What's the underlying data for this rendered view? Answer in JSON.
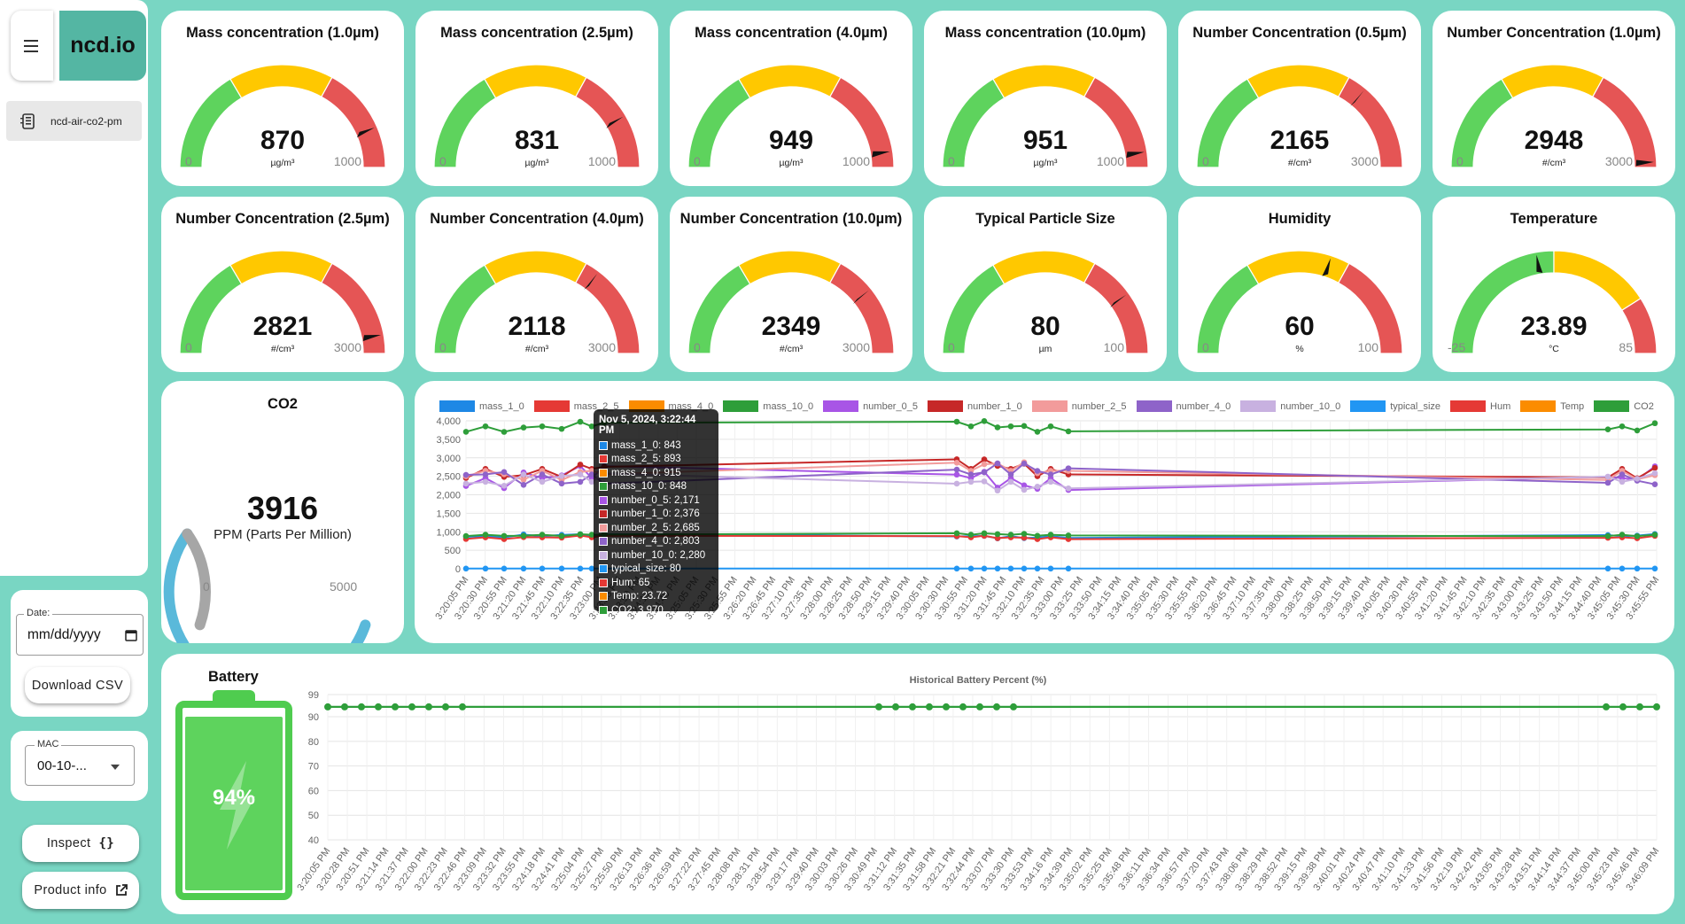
{
  "brand": {
    "name": "ncd.io"
  },
  "sidebar": {
    "menu_icon": "hamburger-icon",
    "device": {
      "label": "ncd-air-co2-pm",
      "icon": "device-icon"
    }
  },
  "date_filter": {
    "label": "Date:",
    "placeholder": "mm/dd/yyyy",
    "icon": "calendar-icon"
  },
  "download_button": {
    "label": "Download CSV"
  },
  "mac_select": {
    "label": "MAC",
    "value": "00-10-...",
    "icon": "dropdown-arrow-icon"
  },
  "inspect_button": {
    "label": "Inspect",
    "icon": "braces-icon"
  },
  "product_info_button": {
    "label": "Product info",
    "icon": "external-link-icon"
  },
  "colors": {
    "green": "#5ed35d",
    "yellow": "#ffc800",
    "red": "#e55555",
    "co2_blue": "#5ab9da",
    "co2_grey": "#a6a6a6",
    "battery_green": "#4fcc4f"
  },
  "gauges": [
    {
      "title": "Mass concentration (1.0µm)",
      "value": "870",
      "unit": "µg/m³",
      "min": "0",
      "max": "1000",
      "value_num": 870,
      "min_num": 0,
      "max_num": 1000,
      "segments": [
        [
          0,
          0.33,
          "green"
        ],
        [
          0.33,
          0.66,
          "yellow"
        ],
        [
          0.66,
          1,
          "red"
        ]
      ]
    },
    {
      "title": "Mass concentration (2.5µm)",
      "value": "831",
      "unit": "µg/m³",
      "min": "0",
      "max": "1000",
      "value_num": 831,
      "min_num": 0,
      "max_num": 1000,
      "segments": [
        [
          0,
          0.33,
          "green"
        ],
        [
          0.33,
          0.66,
          "yellow"
        ],
        [
          0.66,
          1,
          "red"
        ]
      ]
    },
    {
      "title": "Mass concentration (4.0µm)",
      "value": "949",
      "unit": "µg/m³",
      "min": "0",
      "max": "1000",
      "value_num": 949,
      "min_num": 0,
      "max_num": 1000,
      "segments": [
        [
          0,
          0.33,
          "green"
        ],
        [
          0.33,
          0.66,
          "yellow"
        ],
        [
          0.66,
          1,
          "red"
        ]
      ]
    },
    {
      "title": "Mass concentration (10.0µm)",
      "value": "951",
      "unit": "µg/m³",
      "min": "0",
      "max": "1000",
      "value_num": 951,
      "min_num": 0,
      "max_num": 1000,
      "segments": [
        [
          0,
          0.33,
          "green"
        ],
        [
          0.33,
          0.66,
          "yellow"
        ],
        [
          0.66,
          1,
          "red"
        ]
      ]
    },
    {
      "title": "Number Concentration (0.5µm)",
      "value": "2165",
      "unit": "#/cm³",
      "min": "0",
      "max": "3000",
      "value_num": 2165,
      "min_num": 0,
      "max_num": 3000,
      "segments": [
        [
          0,
          0.33,
          "green"
        ],
        [
          0.33,
          0.66,
          "yellow"
        ],
        [
          0.66,
          1,
          "red"
        ]
      ]
    },
    {
      "title": "Number Concentration (1.0µm)",
      "value": "2948",
      "unit": "#/cm³",
      "min": "0",
      "max": "3000",
      "value_num": 2948,
      "min_num": 0,
      "max_num": 3000,
      "segments": [
        [
          0,
          0.33,
          "green"
        ],
        [
          0.33,
          0.66,
          "yellow"
        ],
        [
          0.66,
          1,
          "red"
        ]
      ]
    },
    {
      "title": "Number Concentration (2.5µm)",
      "value": "2821",
      "unit": "#/cm³",
      "min": "0",
      "max": "3000",
      "value_num": 2821,
      "min_num": 0,
      "max_num": 3000,
      "segments": [
        [
          0,
          0.33,
          "green"
        ],
        [
          0.33,
          0.66,
          "yellow"
        ],
        [
          0.66,
          1,
          "red"
        ]
      ]
    },
    {
      "title": "Number Concentration (4.0µm)",
      "value": "2118",
      "unit": "#/cm³",
      "min": "0",
      "max": "3000",
      "value_num": 2118,
      "min_num": 0,
      "max_num": 3000,
      "segments": [
        [
          0,
          0.33,
          "green"
        ],
        [
          0.33,
          0.66,
          "yellow"
        ],
        [
          0.66,
          1,
          "red"
        ]
      ]
    },
    {
      "title": "Number Concentration (10.0µm)",
      "value": "2349",
      "unit": "#/cm³",
      "min": "0",
      "max": "3000",
      "value_num": 2349,
      "min_num": 0,
      "max_num": 3000,
      "segments": [
        [
          0,
          0.33,
          "green"
        ],
        [
          0.33,
          0.66,
          "yellow"
        ],
        [
          0.66,
          1,
          "red"
        ]
      ]
    },
    {
      "title": "Typical Particle Size",
      "value": "80",
      "unit": "µm",
      "min": "0",
      "max": "100",
      "value_num": 80,
      "min_num": 0,
      "max_num": 100,
      "segments": [
        [
          0,
          0.33,
          "green"
        ],
        [
          0.33,
          0.66,
          "yellow"
        ],
        [
          0.66,
          1,
          "red"
        ]
      ]
    },
    {
      "title": "Humidity",
      "value": "60",
      "unit": "%",
      "min": "0",
      "max": "100",
      "value_num": 60,
      "min_num": 0,
      "max_num": 100,
      "segments": [
        [
          0,
          0.33,
          "green"
        ],
        [
          0.33,
          0.66,
          "yellow"
        ],
        [
          0.66,
          1,
          "red"
        ]
      ]
    },
    {
      "title": "Temperature",
      "value": "23.89",
      "unit": "°C",
      "min": "-25",
      "max": "85",
      "value_num": 23.89,
      "min_num": -25,
      "max_num": 85,
      "segments": [
        [
          0,
          0.5,
          "green"
        ],
        [
          0.5,
          0.82,
          "yellow"
        ],
        [
          0.82,
          1,
          "red"
        ]
      ]
    }
  ],
  "co2": {
    "title": "CO2",
    "value": "3916",
    "unit": "PPM (Parts Per Million)",
    "min": "0",
    "max": "5000",
    "value_num": 3916,
    "min_num": 0,
    "max_num": 5000
  },
  "battery": {
    "title": "Battery",
    "percent_label": "94%",
    "percent": 94,
    "icon": "lightning-bolt-icon"
  },
  "chart_data": [
    {
      "type": "line",
      "title": "",
      "legend_position": "top",
      "series": [
        {
          "name": "mass_1_0",
          "color": "#1e88e5"
        },
        {
          "name": "mass_2_5",
          "color": "#e53935"
        },
        {
          "name": "mass_4_0",
          "color": "#fb8c00"
        },
        {
          "name": "mass_10_0",
          "color": "#2e9e3a"
        },
        {
          "name": "number_0_5",
          "color": "#a855e6"
        },
        {
          "name": "number_1_0",
          "color": "#c62828"
        },
        {
          "name": "number_2_5",
          "color": "#f29b9b"
        },
        {
          "name": "number_4_0",
          "color": "#8e63c9"
        },
        {
          "name": "number_10_0",
          "color": "#c8b1e0"
        },
        {
          "name": "typical_size",
          "color": "#2196f3"
        },
        {
          "name": "Hum",
          "color": "#e53935"
        },
        {
          "name": "Temp",
          "color": "#fb8c00"
        },
        {
          "name": "CO2",
          "color": "#2e9e3a"
        }
      ],
      "yticks": [
        "4,000",
        "3,500",
        "3,000",
        "2,500",
        "2,000",
        "1,500",
        "1,000",
        "500",
        "0"
      ],
      "ylim": [
        0,
        4000
      ],
      "xticks": [
        "3:20:05 PM",
        "3:20:30 PM",
        "3:20:55 PM",
        "3:21:20 PM",
        "3:21:45 PM",
        "3:22:10 PM",
        "3:22:35 PM",
        "3:23:00 PM",
        "3:23:25 PM",
        "3:23:50 PM",
        "3:24:15 PM",
        "3:24:40 PM",
        "3:25:05 PM",
        "3:25:30 PM",
        "3:25:55 PM",
        "3:26:20 PM",
        "3:26:45 PM",
        "3:27:10 PM",
        "3:27:35 PM",
        "3:28:00 PM",
        "3:28:25 PM",
        "3:28:50 PM",
        "3:29:15 PM",
        "3:29:40 PM",
        "3:30:05 PM",
        "3:30:30 PM",
        "3:30:55 PM",
        "3:31:20 PM",
        "3:31:45 PM",
        "3:32:10 PM",
        "3:32:35 PM",
        "3:33:00 PM",
        "3:33:25 PM",
        "3:33:50 PM",
        "3:34:15 PM",
        "3:34:40 PM",
        "3:35:05 PM",
        "3:35:30 PM",
        "3:35:55 PM",
        "3:36:20 PM",
        "3:36:45 PM",
        "3:37:10 PM",
        "3:37:35 PM",
        "3:38:00 PM",
        "3:38:25 PM",
        "3:38:50 PM",
        "3:39:15 PM",
        "3:39:40 PM",
        "3:40:05 PM",
        "3:40:30 PM",
        "3:40:55 PM",
        "3:41:20 PM",
        "3:41:45 PM",
        "3:42:10 PM",
        "3:42:35 PM",
        "3:43:00 PM",
        "3:43:25 PM",
        "3:43:50 PM",
        "3:44:15 PM",
        "3:44:40 PM",
        "3:45:05 PM",
        "3:45:30 PM",
        "3:45:55 PM"
      ],
      "tooltip": {
        "title": "Nov 5, 2024, 3:22:44 PM",
        "rows": [
          {
            "text": "mass_1_0: 843",
            "color": "#1e88e5"
          },
          {
            "text": "mass_2_5: 893",
            "color": "#e53935"
          },
          {
            "text": "mass_4_0: 915",
            "color": "#fb8c00"
          },
          {
            "text": "mass_10_0: 848",
            "color": "#2e9e3a"
          },
          {
            "text": "number_0_5: 2,171",
            "color": "#a855e6"
          },
          {
            "text": "number_1_0: 2,376",
            "color": "#c62828"
          },
          {
            "text": "number_2_5: 2,685",
            "color": "#f29b9b"
          },
          {
            "text": "number_4_0: 2,803",
            "color": "#8e63c9"
          },
          {
            "text": "number_10_0: 2,280",
            "color": "#c8b1e0"
          },
          {
            "text": "typical_size: 80",
            "color": "#2196f3"
          },
          {
            "text": "Hum: 65",
            "color": "#e53935"
          },
          {
            "text": "Temp: 23.72",
            "color": "#fb8c00"
          },
          {
            "text": "CO2: 3,970",
            "color": "#2e9e3a"
          }
        ]
      },
      "groups": [
        {
          "x_start": "3:20:05 PM",
          "x_end": "3:22:44 PM",
          "points": 9
        },
        {
          "x_start": "3:30:55 PM",
          "x_end": "3:33:50 PM",
          "points": 9
        },
        {
          "x_start": "3:45:05 PM",
          "x_end": "3:45:55 PM",
          "points": 4
        }
      ]
    },
    {
      "type": "line",
      "title": "Historical Battery Percent (%)",
      "series": [
        {
          "name": "",
          "values": [
            94,
            94,
            94,
            94,
            94,
            94,
            94,
            94,
            94,
            94,
            94,
            94,
            94,
            94,
            94,
            94,
            94,
            94,
            94,
            94,
            94,
            94
          ],
          "color": "#2e9e3a"
        }
      ],
      "yticks": [
        "99",
        "90",
        "80",
        "70",
        "60",
        "50",
        "40"
      ],
      "ylim": [
        40,
        99
      ],
      "xticks": [
        "3:20:05 PM",
        "3:20:28 PM",
        "3:20:51 PM",
        "3:21:14 PM",
        "3:21:37 PM",
        "3:22:00 PM",
        "3:22:23 PM",
        "3:22:46 PM",
        "3:23:09 PM",
        "3:23:32 PM",
        "3:23:55 PM",
        "3:24:18 PM",
        "3:24:41 PM",
        "3:25:04 PM",
        "3:25:27 PM",
        "3:25:50 PM",
        "3:26:13 PM",
        "3:26:36 PM",
        "3:26:59 PM",
        "3:27:22 PM",
        "3:27:45 PM",
        "3:28:08 PM",
        "3:28:31 PM",
        "3:28:54 PM",
        "3:29:17 PM",
        "3:29:40 PM",
        "3:30:03 PM",
        "3:30:26 PM",
        "3:30:49 PM",
        "3:31:12 PM",
        "3:31:35 PM",
        "3:31:58 PM",
        "3:32:21 PM",
        "3:32:44 PM",
        "3:33:07 PM",
        "3:33:30 PM",
        "3:33:53 PM",
        "3:34:16 PM",
        "3:34:39 PM",
        "3:35:02 PM",
        "3:35:25 PM",
        "3:35:48 PM",
        "3:36:11 PM",
        "3:36:34 PM",
        "3:36:57 PM",
        "3:37:20 PM",
        "3:37:43 PM",
        "3:38:06 PM",
        "3:38:29 PM",
        "3:38:52 PM",
        "3:39:15 PM",
        "3:39:38 PM",
        "3:40:01 PM",
        "3:40:24 PM",
        "3:40:47 PM",
        "3:41:10 PM",
        "3:41:33 PM",
        "3:41:56 PM",
        "3:42:19 PM",
        "3:42:42 PM",
        "3:43:05 PM",
        "3:43:28 PM",
        "3:43:51 PM",
        "3:44:14 PM",
        "3:44:37 PM",
        "3:45:00 PM",
        "3:45:23 PM",
        "3:45:46 PM",
        "3:46:09 PM"
      ]
    }
  ]
}
